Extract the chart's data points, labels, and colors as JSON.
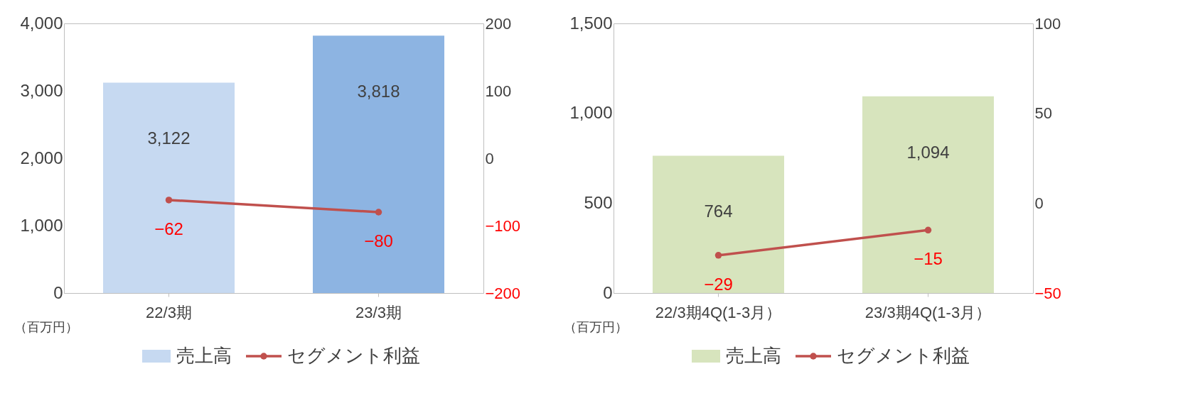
{
  "chart_data": [
    {
      "type": "bar",
      "categories": [
        "22/3期",
        "23/3期"
      ],
      "series": [
        {
          "name": "売上高",
          "colors": [
            "#c6d9f1",
            "#8db4e2"
          ],
          "values": [
            3122,
            3818
          ],
          "value_labels": [
            "3,122",
            "3,818"
          ]
        },
        {
          "name": "セグメント利益",
          "type": "line",
          "color": "#c0504d",
          "axis": "y2",
          "values": [
            -62,
            -80
          ]
        }
      ],
      "ylim": [
        0,
        4000
      ],
      "yticks": [
        0,
        {
          "value": 1000,
          "label": "1,000"
        },
        {
          "value": 2000,
          "label": "2,000"
        },
        {
          "value": 3000,
          "label": "3,000"
        },
        {
          "value": 4000,
          "label": "4,000"
        }
      ],
      "y2lim": [
        -200,
        200
      ],
      "y2ticks": [
        -200,
        -100,
        0,
        100,
        200
      ],
      "data_labels": true,
      "marker": "circle",
      "legend": "bottom",
      "grid": false,
      "annotations": [
        "（百万円）"
      ]
    },
    {
      "type": "bar",
      "categories": [
        "22/3期4Q(1-3月）",
        "23/3期4Q(1-3月）"
      ],
      "series": [
        {
          "name": "売上高",
          "colors": [
            "#d7e4bd",
            "#d7e4bd"
          ],
          "values": [
            764,
            1094
          ],
          "value_labels": [
            "764",
            "1,094"
          ]
        },
        {
          "name": "セグメント利益",
          "type": "line",
          "color": "#c0504d",
          "axis": "y2",
          "values": [
            -29,
            -15
          ]
        }
      ],
      "ylim": [
        0,
        1500
      ],
      "yticks": [
        0,
        500,
        {
          "value": 1000,
          "label": "1,000"
        },
        {
          "value": 1500,
          "label": "1,500"
        }
      ],
      "y2lim": [
        -50,
        100
      ],
      "y2ticks": [
        -50,
        0,
        50,
        100
      ],
      "data_labels": true,
      "marker": "circle",
      "legend": "bottom",
      "grid": false,
      "annotations": [
        "（百万円）"
      ]
    }
  ]
}
